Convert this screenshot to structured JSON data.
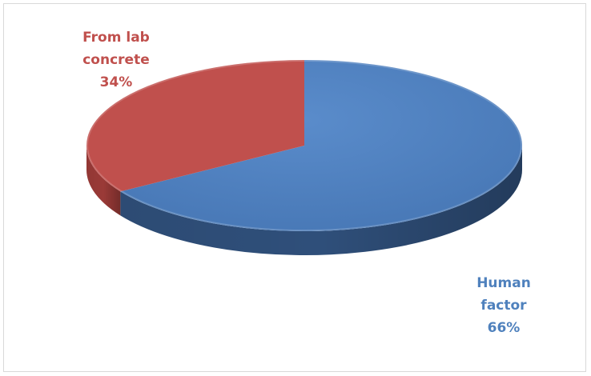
{
  "chart_data": {
    "type": "pie",
    "title": "",
    "slices": [
      {
        "label_lines": [
          "Human",
          "factor"
        ],
        "percent_text": "66%",
        "value": 66,
        "color": "#4f81bd",
        "side_color": "#2f4f7a"
      },
      {
        "label_lines": [
          "From lab",
          "concrete"
        ],
        "percent_text": "34%",
        "value": 34,
        "color": "#c0504d",
        "side_color": "#9a3a37"
      }
    ],
    "start": "top, clockwise",
    "style": "3D pie"
  }
}
